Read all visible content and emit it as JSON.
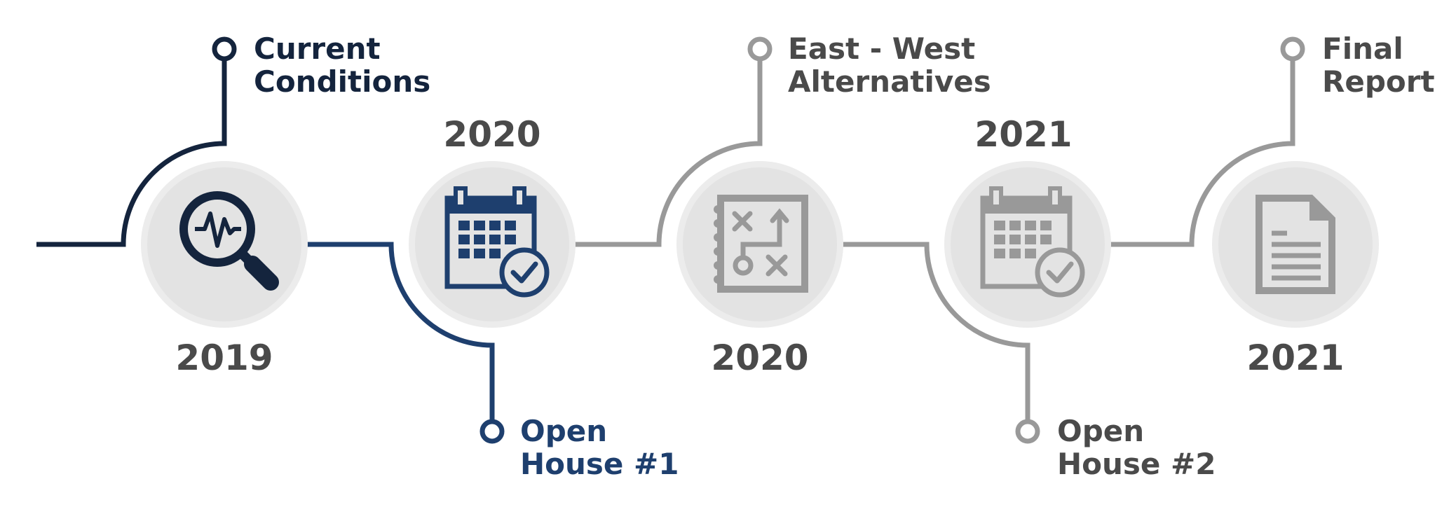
{
  "colors": {
    "dark": "#14243d",
    "blue": "#1e3f6e",
    "gray": "#999999",
    "year_text": "#4a4a4a",
    "circle_outer": "#ececec",
    "circle_inner": "#e3e3e3"
  },
  "milestones": [
    {
      "year": "2019",
      "label_lines": [
        "Current",
        "Conditions"
      ],
      "icon": "magnifier-pulse-icon",
      "color": "#14243d"
    },
    {
      "year": "2020",
      "label_lines": [
        "Open",
        "House #1"
      ],
      "icon": "calendar-check-icon",
      "color": "#1e3f6e"
    },
    {
      "year": "2020",
      "label_lines": [
        "East - West",
        "Alternatives"
      ],
      "icon": "strategy-notebook-icon",
      "color": "#999999"
    },
    {
      "year": "2021",
      "label_lines": [
        "Open",
        "House #2"
      ],
      "icon": "calendar-check-icon",
      "color": "#999999"
    },
    {
      "year": "2021",
      "label_lines": [
        "Final",
        "Report"
      ],
      "icon": "document-icon",
      "color": "#999999"
    }
  ]
}
